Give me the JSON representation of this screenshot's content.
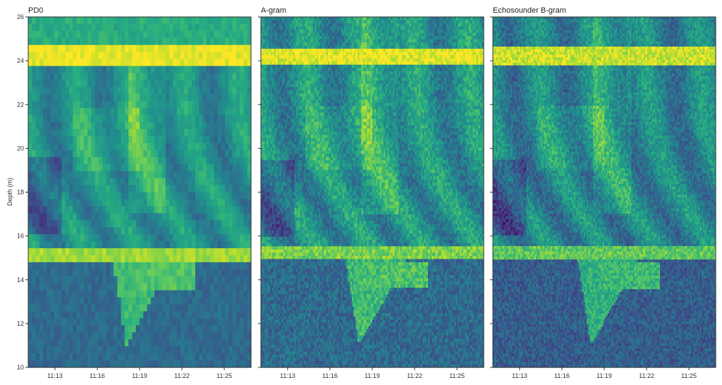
{
  "chart_data": {
    "type": "heatmap",
    "ylabel": "Depth (m)",
    "ylim": [
      10,
      26
    ],
    "y_ticks": [
      "10",
      "12",
      "14",
      "16",
      "18",
      "20",
      "22",
      "24",
      "26"
    ],
    "x_ticks": [
      "11:13",
      "11:16",
      "11:19",
      "11:22",
      "11:25"
    ],
    "colormap": "viridis",
    "panels": [
      {
        "title": "PD0"
      },
      {
        "title": "A-gram"
      },
      {
        "title": "Echosounder B-gram"
      }
    ]
  }
}
